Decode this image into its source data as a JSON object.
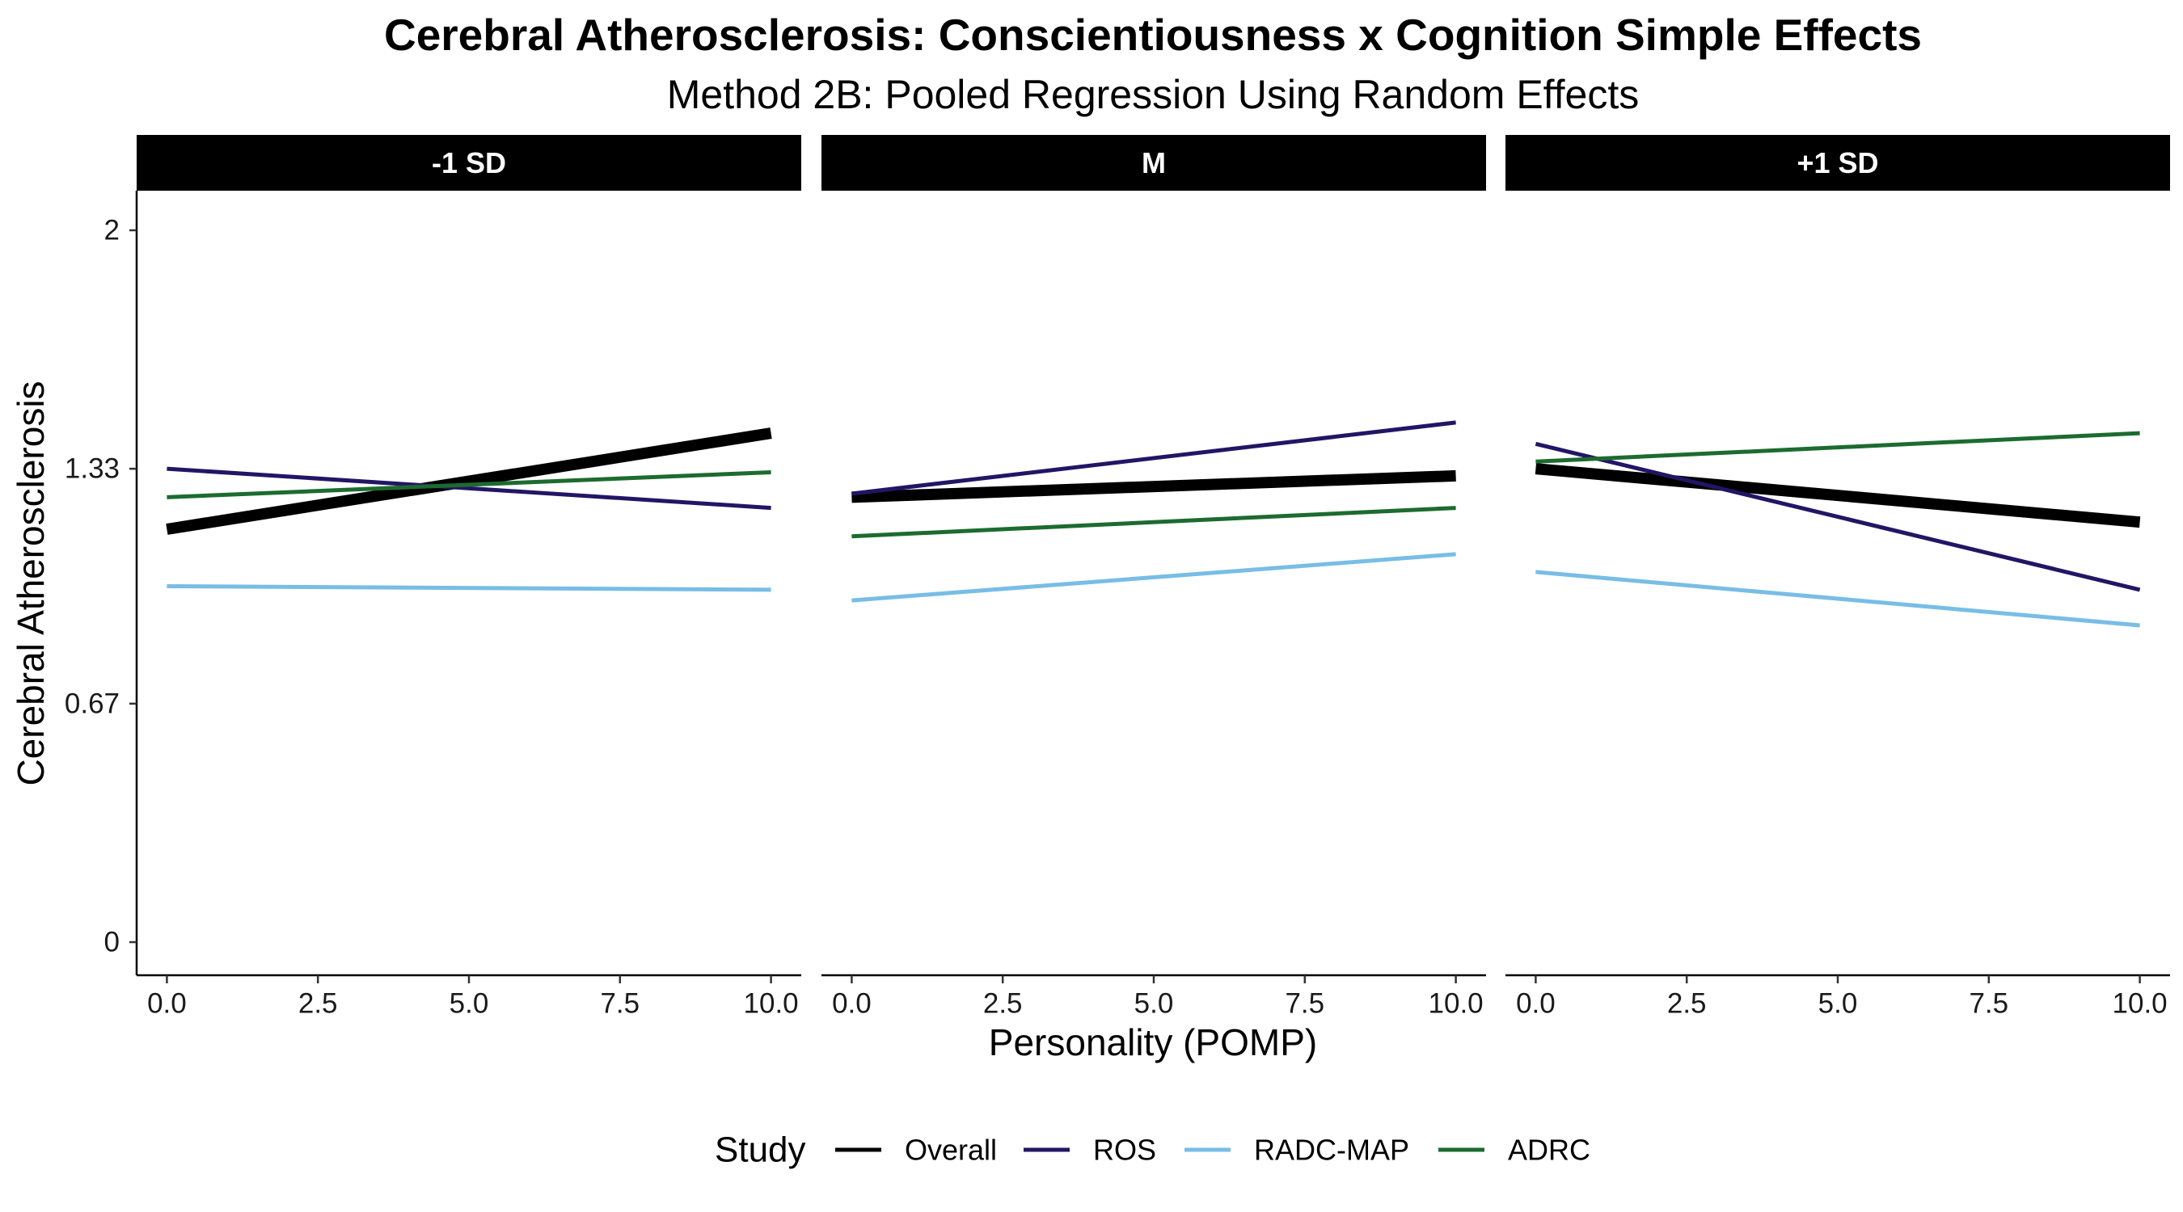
{
  "chart_data": {
    "type": "line",
    "title": "Cerebral Atherosclerosis: Conscientiousness x Cognition Simple Effects",
    "subtitle": "Method 2B: Pooled Regression Using Random Effects",
    "xlabel": "Personality (POMP)",
    "ylabel": "Cerebral Atherosclerosis",
    "xlim": [
      0,
      10
    ],
    "ylim": [
      0,
      2
    ],
    "x_ticks": [
      0,
      2.5,
      5,
      7.5,
      10
    ],
    "x_tick_labels": [
      "0.0",
      "2.5",
      "5.0",
      "7.5",
      "10.0"
    ],
    "y_ticks": [
      0,
      0.67,
      1.33,
      2
    ],
    "y_tick_labels": [
      "0",
      "0.67",
      "1.33",
      "2"
    ],
    "grid": false,
    "legend": {
      "title": "Study",
      "position": "bottom",
      "entries": [
        "Overall",
        "ROS",
        "RADC-MAP",
        "ADRC"
      ]
    },
    "colors": {
      "Overall": "#000000",
      "ROS": "#231565",
      "RADC-MAP": "#78BDE6",
      "ADRC": "#1C6B30"
    },
    "panels": [
      {
        "label": "-1 SD",
        "series": [
          {
            "name": "Overall",
            "x": [
              0,
              10
            ],
            "y": [
              1.16,
              1.43
            ]
          },
          {
            "name": "ROS",
            "x": [
              0,
              10
            ],
            "y": [
              1.33,
              1.22
            ]
          },
          {
            "name": "RADC-MAP",
            "x": [
              0,
              10
            ],
            "y": [
              1.0,
              0.99
            ]
          },
          {
            "name": "ADRC",
            "x": [
              0,
              10
            ],
            "y": [
              1.25,
              1.32
            ]
          }
        ]
      },
      {
        "label": "M",
        "series": [
          {
            "name": "Overall",
            "x": [
              0,
              10
            ],
            "y": [
              1.25,
              1.31
            ]
          },
          {
            "name": "ROS",
            "x": [
              0,
              10
            ],
            "y": [
              1.26,
              1.46
            ]
          },
          {
            "name": "RADC-MAP",
            "x": [
              0,
              10
            ],
            "y": [
              0.96,
              1.09
            ]
          },
          {
            "name": "ADRC",
            "x": [
              0,
              10
            ],
            "y": [
              1.14,
              1.22
            ]
          }
        ]
      },
      {
        "label": "+1 SD",
        "series": [
          {
            "name": "Overall",
            "x": [
              0,
              10
            ],
            "y": [
              1.33,
              1.18
            ]
          },
          {
            "name": "ROS",
            "x": [
              0,
              10
            ],
            "y": [
              1.4,
              0.99
            ]
          },
          {
            "name": "RADC-MAP",
            "x": [
              0,
              10
            ],
            "y": [
              1.04,
              0.89
            ]
          },
          {
            "name": "ADRC",
            "x": [
              0,
              10
            ],
            "y": [
              1.35,
              1.43
            ]
          }
        ]
      }
    ]
  }
}
